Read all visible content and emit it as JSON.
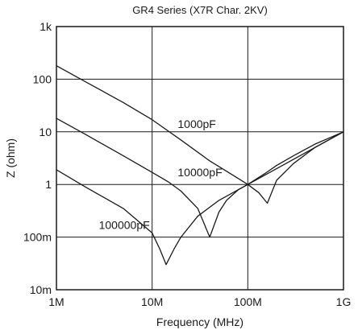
{
  "chart_data": {
    "type": "line",
    "title": "GR4 Series (X7R Char. 2KV)",
    "xlabel": "Frequency (MHz)",
    "ylabel": "Z (ohm)",
    "x_scale": "log",
    "y_scale": "log",
    "xlim": [
      1,
      1000
    ],
    "ylim": [
      0.01,
      1000
    ],
    "x_ticks": [
      {
        "value": 1,
        "label": "1M"
      },
      {
        "value": 10,
        "label": "10M"
      },
      {
        "value": 100,
        "label": "100M"
      },
      {
        "value": 1000,
        "label": "1G"
      }
    ],
    "y_ticks": [
      {
        "value": 0.01,
        "label": "10m"
      },
      {
        "value": 0.1,
        "label": "100m"
      },
      {
        "value": 1,
        "label": "1"
      },
      {
        "value": 10,
        "label": "10"
      },
      {
        "value": 100,
        "label": "100"
      },
      {
        "value": 1000,
        "label": "1k"
      }
    ],
    "grid": true,
    "legend": "none",
    "series": [
      {
        "name": "1000pF",
        "points": [
          [
            1,
            180
          ],
          [
            2,
            90
          ],
          [
            5,
            36
          ],
          [
            10,
            17
          ],
          [
            20,
            7
          ],
          [
            40,
            2.8
          ],
          [
            70,
            1.5
          ],
          [
            100,
            1.0
          ],
          [
            150,
            1.6
          ],
          [
            200,
            2.3
          ],
          [
            300,
            3.5
          ],
          [
            500,
            5.8
          ],
          [
            1000,
            10
          ]
        ]
      },
      {
        "name": "10000pF",
        "points": [
          [
            1,
            18
          ],
          [
            2,
            9
          ],
          [
            5,
            3.5
          ],
          [
            10,
            1.7
          ],
          [
            15,
            1.1
          ],
          [
            20,
            0.75
          ],
          [
            30,
            0.35
          ],
          [
            40,
            0.1
          ],
          [
            50,
            0.3
          ],
          [
            60,
            0.5
          ],
          [
            80,
            0.8
          ],
          [
            100,
            1.0
          ],
          [
            130,
            0.7
          ],
          [
            160,
            0.44
          ],
          [
            200,
            1.2
          ],
          [
            300,
            2.5
          ],
          [
            500,
            5
          ],
          [
            1000,
            10
          ]
        ]
      },
      {
        "name": "100000pF",
        "points": [
          [
            1,
            1.9
          ],
          [
            2,
            0.9
          ],
          [
            5,
            0.35
          ],
          [
            10,
            0.12
          ],
          [
            12,
            0.06
          ],
          [
            14,
            0.03
          ],
          [
            17,
            0.06
          ],
          [
            20,
            0.1
          ],
          [
            30,
            0.25
          ],
          [
            50,
            0.5
          ],
          [
            100,
            1.0
          ],
          [
            200,
            2.0
          ],
          [
            500,
            5
          ],
          [
            1000,
            10
          ]
        ]
      }
    ],
    "annotations": [
      {
        "text": "1000pF",
        "x": 20,
        "y": 14
      },
      {
        "text": "10000pF",
        "x": 20,
        "y": 1.7
      },
      {
        "text": "100000pF",
        "x": 3,
        "y": 0.17
      }
    ],
    "colors": {
      "line": "#1a1a1a",
      "grid": "#1a1a1a",
      "background": "#ffffff"
    }
  }
}
